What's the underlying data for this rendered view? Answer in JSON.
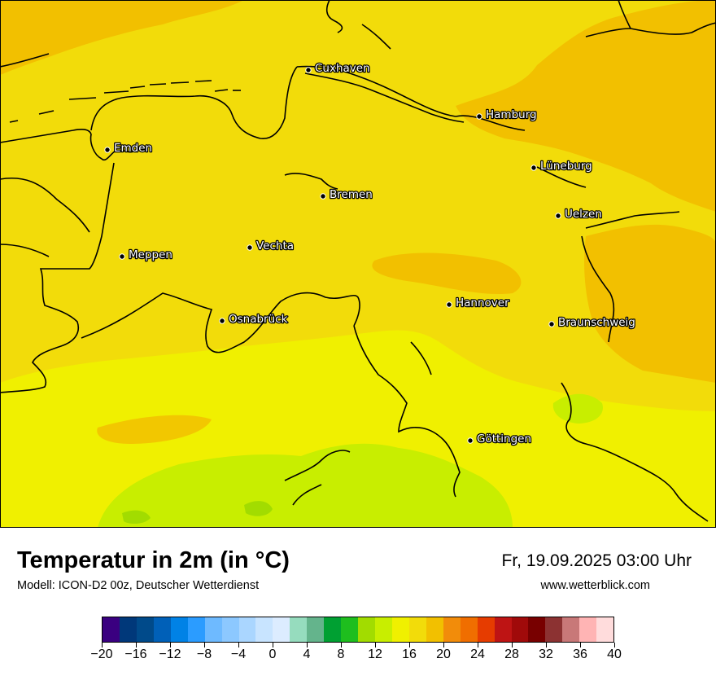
{
  "header": {
    "title": "Temperatur in 2m (in °C)",
    "subtitle": "Modell: ICON-D2 00z, Deutscher Wetterdienst",
    "datetime": "Fr, 19.09.2025 03:00 Uhr",
    "website": "www.wetterblick.com"
  },
  "map": {
    "colors": {
      "t16_18": "#f0f000",
      "t18_20": "#f2dc0a",
      "t20_22": "#f2c000",
      "t14_16": "#c8ee00",
      "t12_14": "#a2dc00",
      "border": "#000000"
    },
    "cities": [
      {
        "name": "Cuxhaven"
      },
      {
        "name": "Hamburg"
      },
      {
        "name": "Emden"
      },
      {
        "name": "Lüneburg"
      },
      {
        "name": "Bremen"
      },
      {
        "name": "Uelzen"
      },
      {
        "name": "Vechta"
      },
      {
        "name": "Meppen"
      },
      {
        "name": "Hannover"
      },
      {
        "name": "Osnabrück"
      },
      {
        "name": "Braunschweig"
      },
      {
        "name": "Göttingen"
      }
    ]
  },
  "legend": {
    "colors": [
      "#3a0080",
      "#00387a",
      "#004a8a",
      "#0060b8",
      "#0082e6",
      "#2b9cff",
      "#6ebaff",
      "#8cc8ff",
      "#aad6ff",
      "#c8e4ff",
      "#dcecff",
      "#96dcbe",
      "#64b48c",
      "#00a032",
      "#1ebe1e",
      "#a2dc00",
      "#c8ee00",
      "#f0f000",
      "#f2dc0a",
      "#f2c000",
      "#f28c0a",
      "#f06e00",
      "#e63c00",
      "#be1414",
      "#a00a0a",
      "#780000",
      "#8c3232",
      "#c87878",
      "#ffb4b4",
      "#ffdcdc"
    ],
    "tick_labels": [
      "−20",
      "−16",
      "−12",
      "−8",
      "−4",
      "0",
      "4",
      "8",
      "12",
      "16",
      "20",
      "24",
      "28",
      "32",
      "36",
      "40"
    ]
  }
}
